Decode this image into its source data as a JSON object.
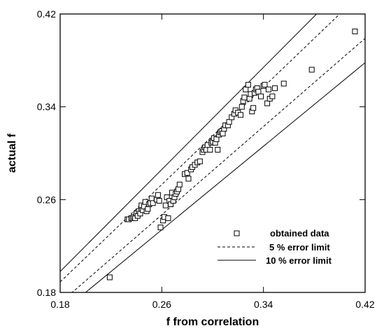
{
  "chart_data": {
    "type": "scatter",
    "title": "",
    "xlabel": "f from correlation",
    "ylabel": "actual f",
    "xlim": [
      0.18,
      0.42
    ],
    "ylim": [
      0.18,
      0.42
    ],
    "x_ticks": [
      0.18,
      0.26,
      0.34,
      0.42
    ],
    "y_ticks": [
      0.18,
      0.26,
      0.34,
      0.42
    ],
    "x_tick_labels": [
      "0.18",
      "0.26",
      "0.34",
      "0.42"
    ],
    "y_tick_labels": [
      "0.18",
      "0.26",
      "0.34",
      "0.42"
    ],
    "grid": false,
    "legend_position": "bottom-right",
    "legend": [
      {
        "label": "obtained data",
        "style": "square-marker"
      },
      {
        "label": "5 % error limit",
        "style": "dashed-line"
      },
      {
        "label": "10 % error limit",
        "style": "solid-line"
      }
    ],
    "error_limits": [
      {
        "name": "5 % error limit",
        "factors": [
          0.95,
          1.05
        ],
        "style": "dashed"
      },
      {
        "name": "10 % error limit",
        "factors": [
          0.9,
          1.1
        ],
        "style": "solid"
      }
    ],
    "series": [
      {
        "name": "obtained data",
        "points": [
          [
            0.219,
            0.193
          ],
          [
            0.233,
            0.243
          ],
          [
            0.234,
            0.243
          ],
          [
            0.236,
            0.244
          ],
          [
            0.237,
            0.244
          ],
          [
            0.238,
            0.245
          ],
          [
            0.239,
            0.244
          ],
          [
            0.24,
            0.248
          ],
          [
            0.241,
            0.246
          ],
          [
            0.242,
            0.25
          ],
          [
            0.243,
            0.248
          ],
          [
            0.244,
            0.252
          ],
          [
            0.244,
            0.255
          ],
          [
            0.245,
            0.251
          ],
          [
            0.246,
            0.254
          ],
          [
            0.247,
            0.258
          ],
          [
            0.248,
            0.25
          ],
          [
            0.249,
            0.252
          ],
          [
            0.25,
            0.256
          ],
          [
            0.251,
            0.257
          ],
          [
            0.252,
            0.261
          ],
          [
            0.253,
            0.257
          ],
          [
            0.256,
            0.26
          ],
          [
            0.257,
            0.264
          ],
          [
            0.258,
            0.259
          ],
          [
            0.259,
            0.236
          ],
          [
            0.261,
            0.242
          ],
          [
            0.262,
            0.245
          ],
          [
            0.263,
            0.255
          ],
          [
            0.264,
            0.262
          ],
          [
            0.265,
            0.244
          ],
          [
            0.266,
            0.259
          ],
          [
            0.267,
            0.256
          ],
          [
            0.268,
            0.266
          ],
          [
            0.269,
            0.259
          ],
          [
            0.27,
            0.262
          ],
          [
            0.271,
            0.265
          ],
          [
            0.272,
            0.267
          ],
          [
            0.273,
            0.269
          ],
          [
            0.274,
            0.273
          ],
          [
            0.278,
            0.282
          ],
          [
            0.28,
            0.283
          ],
          [
            0.281,
            0.278
          ],
          [
            0.283,
            0.286
          ],
          [
            0.284,
            0.288
          ],
          [
            0.286,
            0.29
          ],
          [
            0.288,
            0.292
          ],
          [
            0.29,
            0.293
          ],
          [
            0.292,
            0.301
          ],
          [
            0.293,
            0.303
          ],
          [
            0.294,
            0.305
          ],
          [
            0.295,
            0.303
          ],
          [
            0.296,
            0.307
          ],
          [
            0.298,
            0.303
          ],
          [
            0.299,
            0.309
          ],
          [
            0.3,
            0.31
          ],
          [
            0.301,
            0.313
          ],
          [
            0.302,
            0.309
          ],
          [
            0.303,
            0.312
          ],
          [
            0.304,
            0.303
          ],
          [
            0.305,
            0.316
          ],
          [
            0.306,
            0.318
          ],
          [
            0.307,
            0.319
          ],
          [
            0.308,
            0.317
          ],
          [
            0.309,
            0.321
          ],
          [
            0.31,
            0.324
          ],
          [
            0.312,
            0.324
          ],
          [
            0.313,
            0.327
          ],
          [
            0.315,
            0.331
          ],
          [
            0.317,
            0.334
          ],
          [
            0.318,
            0.337
          ],
          [
            0.32,
            0.335
          ],
          [
            0.322,
            0.333
          ],
          [
            0.323,
            0.34
          ],
          [
            0.324,
            0.345
          ],
          [
            0.325,
            0.348
          ],
          [
            0.326,
            0.355
          ],
          [
            0.328,
            0.359
          ],
          [
            0.329,
            0.347
          ],
          [
            0.33,
            0.351
          ],
          [
            0.331,
            0.336
          ],
          [
            0.332,
            0.339
          ],
          [
            0.333,
            0.352
          ],
          [
            0.334,
            0.355
          ],
          [
            0.335,
            0.356
          ],
          [
            0.336,
            0.353
          ],
          [
            0.338,
            0.349
          ],
          [
            0.34,
            0.358
          ],
          [
            0.341,
            0.359
          ],
          [
            0.343,
            0.343
          ],
          [
            0.344,
            0.355
          ],
          [
            0.345,
            0.347
          ],
          [
            0.347,
            0.349
          ],
          [
            0.349,
            0.356
          ],
          [
            0.356,
            0.36
          ],
          [
            0.378,
            0.372
          ],
          [
            0.412,
            0.405
          ]
        ]
      }
    ]
  }
}
